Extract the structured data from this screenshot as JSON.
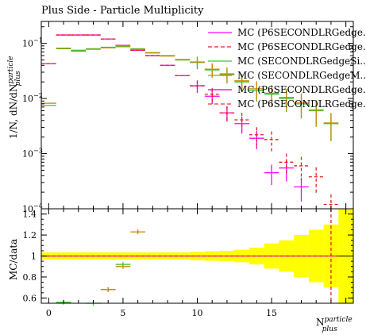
{
  "chart_data": {
    "type": "scatter",
    "title": "Plus Side - Particle Multiplicity",
    "ylabel_main": {
      "base": "1/N, dN/dN",
      "sup": "particle",
      "sub": "plus"
    },
    "ylabel_ratio": "MC/data",
    "xlabel": {
      "base": "N",
      "sup": "particle",
      "sub": "plus"
    },
    "xlim": [
      -0.5,
      20.5
    ],
    "ylim_main": [
      0.0001,
      0.25
    ],
    "ylog": true,
    "ylim_ratio": [
      0.55,
      1.45
    ],
    "xticks": [
      0,
      5,
      10,
      15
    ],
    "yticks_ratio": [
      0.6,
      0.8,
      1.0,
      1.2,
      1.4
    ],
    "ytick_labels_ratio": [
      "0.6",
      "0.8",
      "1",
      "1.2",
      "1.4"
    ],
    "yticks_main": [
      0.0001,
      0.001,
      0.01,
      0.1
    ],
    "ytick_labels_main": {
      "base": [
        "10",
        "10",
        "10",
        "10"
      ],
      "exp": [
        "−4",
        "−3",
        "−2",
        "−1"
      ]
    },
    "legend_position": "top-right",
    "reference": {
      "values": [
        0.043,
        0.14,
        0.142,
        0.13,
        0.12,
        0.1,
        0.08,
        0.062,
        0.045,
        0.031,
        0.021,
        0.014,
        0.0093,
        0.0058,
        0.0036,
        0.0022,
        0.0013,
        0.0008,
        0.0005,
        0.0002,
        0.0001
      ],
      "band": [
        0.035,
        0.035,
        0.035,
        0.035,
        0.035,
        0.035,
        0.035,
        0.035,
        0.035,
        0.035,
        0.04,
        0.045,
        0.05,
        0.06,
        0.08,
        0.12,
        0.15,
        0.2,
        0.25,
        0.3,
        0.45
      ]
    },
    "series": [
      {
        "name": "MC (P6SECONDLRGedge...",
        "color": "#ff00ff",
        "dashed": false,
        "values": [
          0.043,
          0.142,
          0.142,
          0.142,
          0.12,
          0.092,
          0.075,
          0.06,
          0.04,
          0.026,
          0.017,
          0.011,
          0.0055,
          0.0035,
          0.0019,
          0.00045,
          0.00055,
          0.00025,
          null,
          null,
          null
        ]
      },
      {
        "name": "MC (P6SECONDLRGedge...",
        "color": "#dd2222",
        "dashed": true,
        "values": [
          0.043,
          0.142,
          0.142,
          0.142,
          0.12,
          0.092,
          0.075,
          0.06,
          0.04,
          0.026,
          0.017,
          0.012,
          0.0055,
          0.0041,
          0.0022,
          0.0018,
          0.0007,
          0.0006,
          0.00038,
          0.00012,
          null
        ]
      },
      {
        "name": "MC (SECONDLRGedgeSi...",
        "color": "#33cc33",
        "dashed": false,
        "values": [
          0.0075,
          0.08,
          0.075,
          0.08,
          0.085,
          0.087,
          0.08,
          0.068,
          0.06,
          0.05,
          0.045,
          0.033,
          0.027,
          0.02,
          0.014,
          0.012,
          0.01,
          0.008,
          0.006,
          0.0035,
          null
        ]
      },
      {
        "name": "MC (SECONDLRGedgeM...",
        "color": "#cc8800",
        "dashed": false,
        "values": [
          0.0082,
          0.082,
          0.072,
          0.078,
          0.083,
          0.09,
          0.078,
          0.067,
          0.059,
          0.051,
          0.046,
          0.034,
          0.028,
          0.021,
          0.015,
          0.0125,
          0.0105,
          0.0085,
          0.0062,
          0.0036,
          null
        ]
      },
      {
        "name": "MC (P6SECONDLRGedge...",
        "color": "#cc00cc",
        "dashed": false,
        "values": [
          null,
          null,
          null,
          null,
          null,
          null,
          null,
          null,
          null,
          null,
          null,
          null,
          null,
          null,
          null,
          null,
          null,
          null,
          null,
          null,
          null
        ]
      },
      {
        "name": "MC (P6SECONDLRGedge...",
        "color": "#ee3333",
        "dashed": true,
        "values": [
          null,
          null,
          null,
          null,
          null,
          null,
          null,
          null,
          null,
          null,
          null,
          null,
          null,
          null,
          null,
          null,
          null,
          null,
          null,
          null,
          null
        ]
      }
    ],
    "ratio_points": [
      {
        "color": "#33cc33",
        "x": [
          1,
          3,
          4,
          5
        ],
        "y": [
          0.56,
          0.55,
          0.68,
          0.92
        ]
      },
      {
        "color": "#cc8800",
        "x": [
          1,
          3,
          4,
          5,
          6
        ],
        "y": [
          0.54,
          0.53,
          0.68,
          0.9,
          1.23
        ]
      }
    ]
  }
}
